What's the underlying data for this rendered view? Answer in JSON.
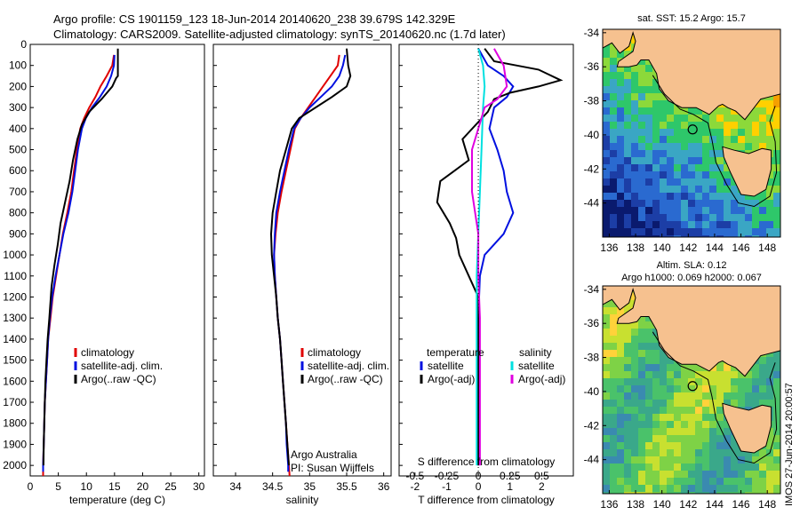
{
  "header": {
    "line1": "Argo profile: CS 1901159_123 18-Jun-2014 20140620_238 39.679S 142.329E",
    "line2": "Climatology: CARS2009. Satellite-adjusted climatology: synTS_20140620.nc (1.7d later)"
  },
  "colors": {
    "clim": "#e00000",
    "sat": "#0010e0",
    "argo": "#000000",
    "sat_s": "#00e0e0",
    "argo_s": "#e000e0",
    "land": "#f6c18f"
  },
  "chart_data": [
    {
      "id": "temperature",
      "type": "line",
      "xlabel": "temperature (deg C)",
      "ylabel": "",
      "xlim": [
        0,
        31
      ],
      "ylim": [
        2050,
        0
      ],
      "xticks": [
        0,
        5,
        10,
        15,
        20,
        25,
        30
      ],
      "yticks": [
        0,
        100,
        200,
        300,
        400,
        500,
        600,
        700,
        800,
        900,
        1000,
        1100,
        1200,
        1300,
        1400,
        1500,
        1600,
        1700,
        1800,
        1900,
        2000
      ],
      "legend": [
        "climatology",
        "satellite-adj. clim.",
        "Argo(..raw -QC)"
      ],
      "series": [
        {
          "name": "climatology",
          "color": "clim",
          "points": [
            [
              14.9,
              50
            ],
            [
              14.6,
              100
            ],
            [
              13.6,
              150
            ],
            [
              12.5,
              200
            ],
            [
              11.6,
              250
            ],
            [
              10.5,
              300
            ],
            [
              9.6,
              350
            ],
            [
              8.9,
              400
            ],
            [
              8.3,
              500
            ],
            [
              7.8,
              600
            ],
            [
              7.3,
              700
            ],
            [
              6.6,
              800
            ],
            [
              5.8,
              900
            ],
            [
              5.2,
              1000
            ],
            [
              4.6,
              1100
            ],
            [
              4.0,
              1200
            ],
            [
              3.6,
              1300
            ],
            [
              3.2,
              1400
            ],
            [
              3.0,
              1500
            ],
            [
              2.8,
              1600
            ],
            [
              2.6,
              1700
            ],
            [
              2.5,
              1800
            ],
            [
              2.4,
              1900
            ],
            [
              2.3,
              2000
            ],
            [
              2.3,
              2050
            ]
          ]
        },
        {
          "name": "satellite-adj. clim.",
          "color": "sat",
          "points": [
            [
              15.0,
              50
            ],
            [
              14.9,
              100
            ],
            [
              14.4,
              150
            ],
            [
              13.6,
              200
            ],
            [
              12.4,
              250
            ],
            [
              11.0,
              300
            ],
            [
              9.9,
              350
            ],
            [
              9.2,
              400
            ],
            [
              8.5,
              500
            ],
            [
              8.0,
              600
            ],
            [
              7.5,
              700
            ],
            [
              6.8,
              800
            ],
            [
              5.9,
              900
            ],
            [
              5.2,
              1000
            ],
            [
              4.5,
              1100
            ],
            [
              3.9,
              1200
            ],
            [
              3.5,
              1300
            ],
            [
              3.2,
              1400
            ],
            [
              3.0,
              1500
            ],
            [
              2.8,
              1600
            ],
            [
              2.6,
              1700
            ],
            [
              2.5,
              1800
            ],
            [
              2.4,
              1900
            ],
            [
              2.3,
              2000
            ],
            [
              2.3,
              2030
            ]
          ]
        },
        {
          "name": "Argo(..raw -QC)",
          "color": "argo",
          "points": [
            [
              15.6,
              20
            ],
            [
              15.6,
              100
            ],
            [
              15.6,
              150
            ],
            [
              15.3,
              160
            ],
            [
              14.6,
              200
            ],
            [
              12.7,
              260
            ],
            [
              10.5,
              320
            ],
            [
              9.2,
              380
            ],
            [
              8.4,
              450
            ],
            [
              7.6,
              550
            ],
            [
              7.0,
              650
            ],
            [
              6.2,
              750
            ],
            [
              5.4,
              850
            ],
            [
              4.9,
              950
            ],
            [
              4.3,
              1050
            ],
            [
              3.8,
              1150
            ],
            [
              3.4,
              1300
            ],
            [
              3.1,
              1400
            ],
            [
              2.9,
              1500
            ],
            [
              2.7,
              1600
            ],
            [
              2.6,
              1700
            ],
            [
              2.5,
              1800
            ],
            [
              2.4,
              1900
            ],
            [
              2.35,
              2000
            ]
          ]
        }
      ]
    },
    {
      "id": "salinity",
      "type": "line",
      "xlabel": "salinity",
      "ylabel": "",
      "xlim": [
        33.7,
        36.1
      ],
      "ylim": [
        2050,
        0
      ],
      "xticks": [
        34,
        34.5,
        35,
        35.5,
        36
      ],
      "legend": [
        "climatology",
        "satellite-adj. clim.",
        "Argo(..raw -QC)"
      ],
      "annotation": [
        "Argo Australia",
        "PI: Susan Wijffels"
      ],
      "series": [
        {
          "name": "climatology",
          "color": "clim",
          "points": [
            [
              35.4,
              50
            ],
            [
              35.38,
              100
            ],
            [
              35.28,
              150
            ],
            [
              35.18,
              200
            ],
            [
              35.08,
              250
            ],
            [
              34.98,
              300
            ],
            [
              34.88,
              350
            ],
            [
              34.8,
              400
            ],
            [
              34.74,
              500
            ],
            [
              34.68,
              600
            ],
            [
              34.62,
              700
            ],
            [
              34.57,
              800
            ],
            [
              34.54,
              900
            ],
            [
              34.52,
              1000
            ],
            [
              34.53,
              1100
            ],
            [
              34.55,
              1200
            ],
            [
              34.57,
              1300
            ],
            [
              34.6,
              1400
            ],
            [
              34.62,
              1500
            ],
            [
              34.64,
              1600
            ],
            [
              34.66,
              1700
            ],
            [
              34.68,
              1800
            ],
            [
              34.7,
              1900
            ],
            [
              34.72,
              2000
            ],
            [
              34.73,
              2050
            ]
          ]
        },
        {
          "name": "satellite-adj. clim.",
          "color": "sat",
          "points": [
            [
              35.48,
              50
            ],
            [
              35.45,
              100
            ],
            [
              35.4,
              150
            ],
            [
              35.3,
              200
            ],
            [
              35.15,
              250
            ],
            [
              35.0,
              300
            ],
            [
              34.88,
              350
            ],
            [
              34.79,
              400
            ],
            [
              34.72,
              500
            ],
            [
              34.66,
              600
            ],
            [
              34.6,
              700
            ],
            [
              34.55,
              800
            ],
            [
              34.53,
              900
            ],
            [
              34.52,
              1000
            ],
            [
              34.53,
              1100
            ],
            [
              34.55,
              1200
            ],
            [
              34.57,
              1300
            ],
            [
              34.6,
              1400
            ],
            [
              34.62,
              1500
            ],
            [
              34.64,
              1600
            ],
            [
              34.66,
              1700
            ],
            [
              34.68,
              1800
            ],
            [
              34.69,
              1900
            ],
            [
              34.71,
              2000
            ],
            [
              34.71,
              2030
            ]
          ]
        },
        {
          "name": "Argo(..raw -QC)",
          "color": "argo",
          "points": [
            [
              35.5,
              20
            ],
            [
              35.52,
              100
            ],
            [
              35.55,
              150
            ],
            [
              35.5,
              200
            ],
            [
              35.3,
              250
            ],
            [
              35.08,
              300
            ],
            [
              34.86,
              350
            ],
            [
              34.76,
              400
            ],
            [
              34.68,
              500
            ],
            [
              34.6,
              600
            ],
            [
              34.55,
              700
            ],
            [
              34.5,
              800
            ],
            [
              34.48,
              900
            ],
            [
              34.49,
              1000
            ],
            [
              34.52,
              1100
            ],
            [
              34.55,
              1200
            ],
            [
              34.57,
              1300
            ],
            [
              34.6,
              1400
            ],
            [
              34.62,
              1500
            ],
            [
              34.64,
              1600
            ],
            [
              34.66,
              1700
            ],
            [
              34.68,
              1800
            ],
            [
              34.7,
              1900
            ],
            [
              34.72,
              2000
            ]
          ]
        }
      ]
    },
    {
      "id": "difference",
      "type": "line",
      "xlabel": "T difference from climatology",
      "xlabel_top": "S difference from climatology",
      "xlim": [
        -2.5,
        3.0
      ],
      "ylim": [
        2050,
        0
      ],
      "xticks": [
        -2,
        -1,
        0,
        1,
        2
      ],
      "xticks_s": [
        "-0.5",
        "-0.25",
        "0",
        "0.25",
        "0.5"
      ],
      "xticks_s_pos": [
        -2,
        -1,
        0,
        1,
        2
      ],
      "legend_t": {
        "title": "temperature",
        "items": [
          "satellite",
          "Argo(-adj)"
        ]
      },
      "legend_s": {
        "title": "salinity",
        "items": [
          "satellite",
          "Argo(-adj)"
        ]
      },
      "series": [
        {
          "name": "temperature satellite",
          "color": "sat",
          "points": [
            [
              0.0,
              20
            ],
            [
              0.3,
              100
            ],
            [
              0.8,
              150
            ],
            [
              1.1,
              200
            ],
            [
              0.9,
              250
            ],
            [
              0.5,
              300
            ],
            [
              0.35,
              400
            ],
            [
              0.6,
              500
            ],
            [
              0.8,
              600
            ],
            [
              0.9,
              700
            ],
            [
              1.1,
              800
            ],
            [
              0.8,
              900
            ],
            [
              0.2,
              1000
            ],
            [
              0.05,
              1100
            ],
            [
              0.0,
              1300
            ],
            [
              0.0,
              2000
            ]
          ]
        },
        {
          "name": "temperature Argo(-adj)",
          "color": "argo",
          "points": [
            [
              0.2,
              20
            ],
            [
              0.5,
              80
            ],
            [
              1.2,
              100
            ],
            [
              1.9,
              120
            ],
            [
              2.6,
              170
            ],
            [
              1.9,
              200
            ],
            [
              1.0,
              230
            ],
            [
              0.5,
              260
            ],
            [
              0.3,
              320
            ],
            [
              -0.5,
              450
            ],
            [
              -0.3,
              550
            ],
            [
              -1.2,
              650
            ],
            [
              -1.3,
              750
            ],
            [
              -0.9,
              850
            ],
            [
              -0.7,
              920
            ],
            [
              -0.6,
              1000
            ],
            [
              -0.3,
              1100
            ],
            [
              0.0,
              1200
            ],
            [
              0.0,
              2000
            ]
          ]
        },
        {
          "name": "salinity satellite",
          "color": "sat_s",
          "points": [
            [
              0.0,
              20
            ],
            [
              0.15,
              100
            ],
            [
              0.2,
              200
            ],
            [
              0.15,
              300
            ],
            [
              0.1,
              500
            ],
            [
              0.05,
              700
            ],
            [
              0.0,
              900
            ],
            [
              -0.05,
              1100
            ],
            [
              -0.05,
              1300
            ],
            [
              -0.05,
              2000
            ]
          ]
        },
        {
          "name": "salinity Argo(-adj)",
          "color": "argo_s",
          "points": [
            [
              0.5,
              20
            ],
            [
              0.8,
              100
            ],
            [
              0.9,
              200
            ],
            [
              0.6,
              260
            ],
            [
              0.2,
              300
            ],
            [
              0.0,
              400
            ],
            [
              -0.2,
              500
            ],
            [
              -0.2,
              700
            ],
            [
              0.0,
              900
            ],
            [
              0.0,
              1100
            ],
            [
              0.05,
              1300
            ],
            [
              0.05,
              1500
            ],
            [
              0.05,
              2000
            ]
          ]
        }
      ]
    },
    {
      "id": "map-sst",
      "type": "heatmap",
      "title": "sat. SST: 15.2  Argo: 15.7",
      "xticks": [
        "136",
        "138",
        "140",
        "142",
        "144",
        "146",
        "148"
      ],
      "yticks": [
        "-34",
        "-36",
        "-38",
        "-40",
        "-42",
        "-44"
      ],
      "xlim": [
        135.5,
        149
      ],
      "ylim": [
        -46,
        -33.8
      ],
      "argo_position": [
        142.33,
        -39.68
      ]
    },
    {
      "id": "map-sla",
      "type": "heatmap",
      "title": "Altim. SLA: 0.12",
      "subtitle": "Argo h1000: 0.069  h2000: 0.067",
      "xticks": [
        "136",
        "138",
        "140",
        "142",
        "144",
        "146",
        "148"
      ],
      "yticks": [
        "-34",
        "-36",
        "-38",
        "-40",
        "-42",
        "-44"
      ],
      "xlim": [
        135.5,
        149
      ],
      "ylim": [
        -46,
        -33.8
      ],
      "argo_position": [
        142.33,
        -39.68
      ]
    }
  ],
  "side_text": "IMOS 27-Jun-2014 20:00:57"
}
